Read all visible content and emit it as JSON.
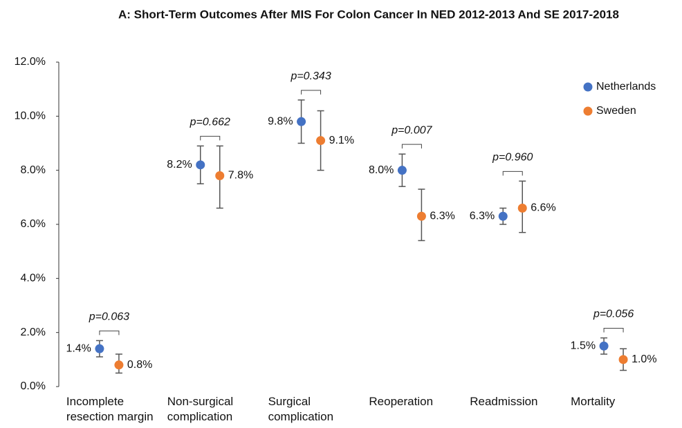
{
  "chart_data": {
    "type": "errorbar-dot",
    "title": "A: Short-Term Outcomes After MIS For Colon Cancer In NED 2012-2013 And SE 2017-2018",
    "categories": [
      "Incomplete resection margin",
      "Non-surgical complication",
      "Surgical complication",
      "Reoperation",
      "Readmission",
      "Mortality"
    ],
    "series": [
      {
        "name": "Netherlands",
        "color": "#4472c4",
        "values": [
          1.4,
          8.2,
          9.8,
          8.0,
          6.3,
          1.5
        ],
        "value_labels": [
          "1.4%",
          "8.2%",
          "9.8%",
          "8.0%",
          "6.3%",
          "1.5%"
        ],
        "lower": [
          1.1,
          7.5,
          9.0,
          7.4,
          6.0,
          1.2
        ],
        "upper": [
          1.7,
          8.9,
          10.6,
          8.6,
          6.6,
          1.8
        ]
      },
      {
        "name": "Sweden",
        "color": "#ed7d31",
        "values": [
          0.8,
          7.8,
          9.1,
          6.3,
          6.6,
          1.0
        ],
        "value_labels": [
          "0.8%",
          "7.8%",
          "9.1%",
          "6.3%",
          "6.6%",
          "1.0%"
        ],
        "lower": [
          0.5,
          6.6,
          8.0,
          5.4,
          5.7,
          0.6
        ],
        "upper": [
          1.2,
          8.9,
          10.2,
          7.3,
          7.6,
          1.4
        ]
      }
    ],
    "p_values": [
      "p=0.063",
      "p=0.662",
      "p=0.343",
      "p=0.007",
      "p=0.960",
      "p=0.056"
    ],
    "ylim": [
      0,
      12
    ],
    "yticks": [
      {
        "value": 0,
        "label": "0.0%"
      },
      {
        "value": 2,
        "label": "2.0%"
      },
      {
        "value": 4,
        "label": "4.0%"
      },
      {
        "value": 6,
        "label": "6.0%"
      },
      {
        "value": 8,
        "label": "8.0%"
      },
      {
        "value": 10,
        "label": "10.0%"
      },
      {
        "value": 12,
        "label": "12.0%"
      }
    ],
    "grid": false,
    "legend": "top-right"
  }
}
